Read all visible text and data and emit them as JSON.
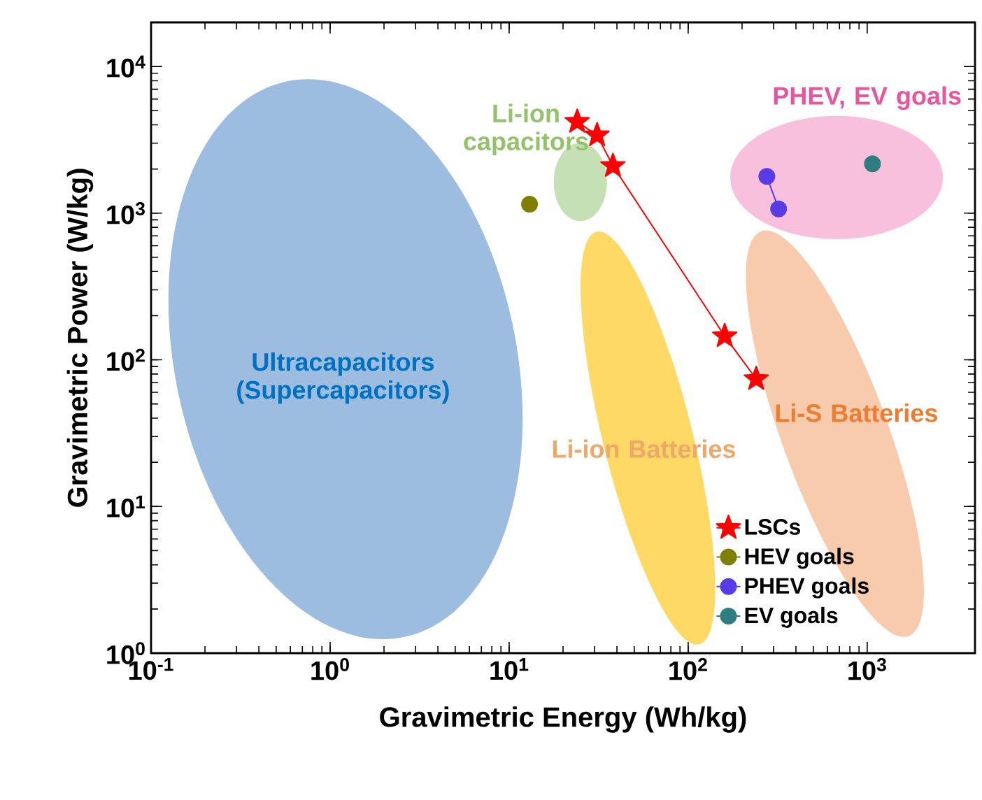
{
  "chart_data": {
    "type": "line",
    "xlabel": "Gravimetric Energy (Wh/kg)",
    "ylabel": "Gravimetric Power (W/kg)",
    "log": "xy",
    "xlim": [
      0.1,
      4000
    ],
    "ylim": [
      1,
      20000
    ],
    "xticks": [
      {
        "value": 0.1,
        "label": "10$^{-1}$"
      },
      {
        "value": 1,
        "label": "10$^{0}$"
      },
      {
        "value": 10,
        "label": "10$^{1}$"
      },
      {
        "value": 100,
        "label": "10$^{2}$"
      },
      {
        "value": 1000,
        "label": "10$^{3}$"
      }
    ],
    "yticks": [
      {
        "value": 1,
        "label": "10$^{0}$"
      },
      {
        "value": 10,
        "label": "10$^{1}$"
      },
      {
        "value": 100,
        "label": "10$^{2}$"
      },
      {
        "value": 1000,
        "label": "10$^{3}$"
      },
      {
        "value": 10000,
        "label": "10$^{4}$"
      }
    ],
    "grid": false,
    "legend": "bottom right",
    "line_style": "solid",
    "series": [
      {
        "name": "LSCs",
        "color": "#ff0000",
        "marker": "star",
        "x": [
          24,
          31,
          38,
          160,
          240
        ],
        "values": [
          4200,
          3400,
          2100,
          145,
          74
        ]
      },
      {
        "name": "HEV goals",
        "color": "#808000",
        "marker": "circle",
        "x": [
          13
        ],
        "values": [
          1150
        ]
      },
      {
        "name": "PHEV goals",
        "color": "#5a3ce6",
        "marker": "circle",
        "x": [
          275,
          320
        ],
        "values": [
          1780,
          1070
        ]
      },
      {
        "name": "EV goals",
        "color": "#2e7d80",
        "marker": "circle",
        "x": [
          1070
        ],
        "values": [
          2170
        ]
      }
    ],
    "annotations": [
      "Ultracapacitors (Supercapacitors)",
      "Li-ion capacitors",
      "Li-ion Batteries",
      "Li-S Batteries",
      "PHEV, EV goals"
    ]
  }
}
